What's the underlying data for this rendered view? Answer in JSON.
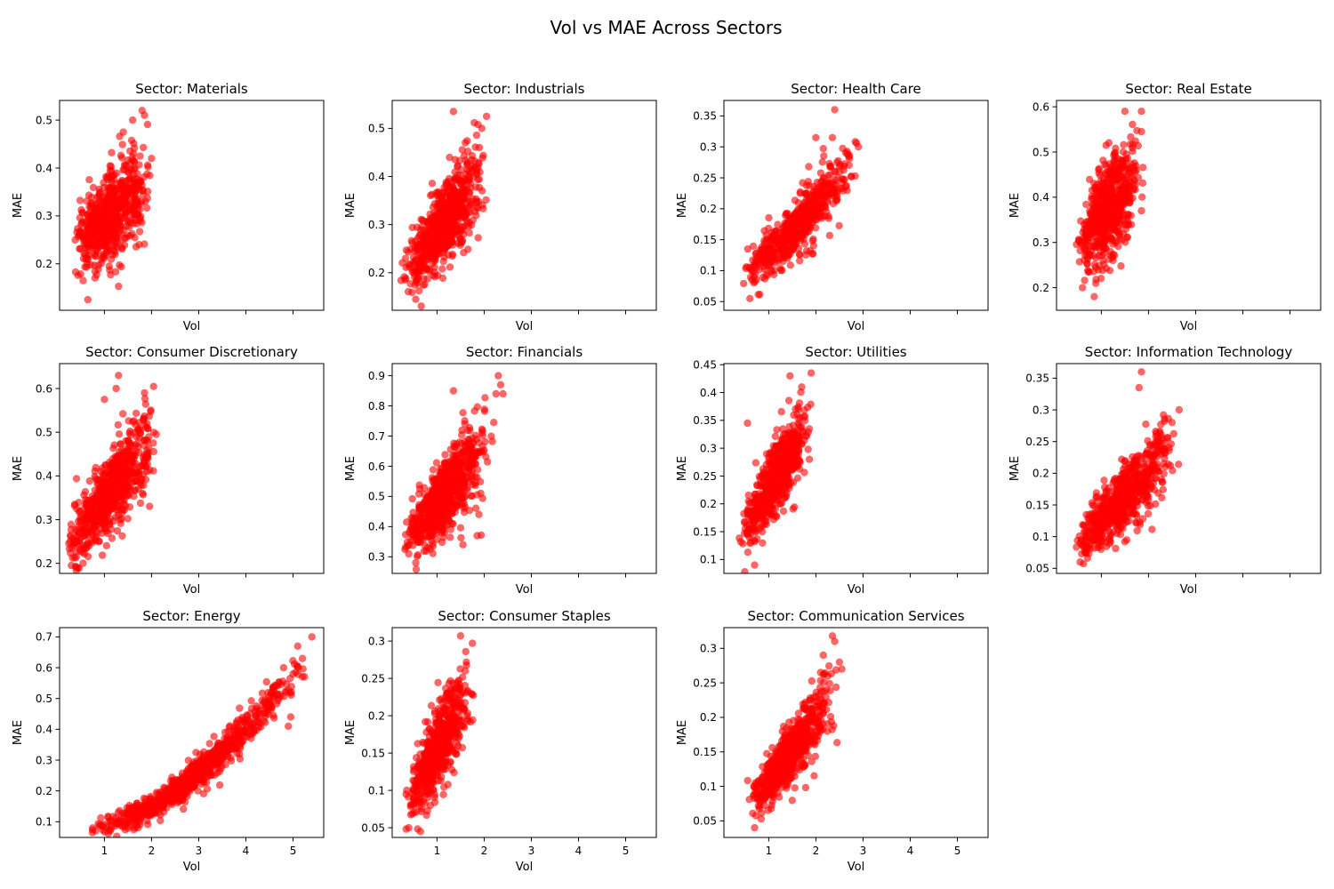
{
  "figure": {
    "title": "Vol vs MAE Across Sectors",
    "grid": "4x3",
    "marker_color": "#ff0000",
    "marker_alpha": 0.6
  },
  "chart_data": [
    {
      "type": "scatter",
      "title": "Sector: Materials",
      "xlabel": "Vol",
      "ylabel": "MAE",
      "xlim": [
        0.05,
        5.65
      ],
      "ylim": [
        0.103,
        0.541
      ],
      "xticks": [
        1,
        2,
        3,
        4,
        5
      ],
      "yticks": [
        0.2,
        0.3,
        0.4,
        0.5
      ],
      "show_xtick_labels": false,
      "cluster": {
        "x_min": 0.4,
        "x_max": 2.0,
        "y_at_x_min": 0.24,
        "y_at_x_max": 0.37,
        "curve": 1,
        "spread": 0.045,
        "n": 650
      },
      "points": [
        {
          "x": 0.65,
          "y": 0.125
        },
        {
          "x": 0.55,
          "y": 0.165
        },
        {
          "x": 1.3,
          "y": 0.153
        },
        {
          "x": 1.8,
          "y": 0.52
        },
        {
          "x": 1.85,
          "y": 0.51
        },
        {
          "x": 1.4,
          "y": 0.475
        },
        {
          "x": 1.6,
          "y": 0.5
        },
        {
          "x": 2.0,
          "y": 0.42
        }
      ]
    },
    {
      "type": "scatter",
      "title": "Sector: Industrials",
      "xlabel": "Vol",
      "ylabel": "MAE",
      "xlim": [
        0.05,
        5.65
      ],
      "ylim": [
        0.122,
        0.558
      ],
      "xticks": [
        1,
        2,
        3,
        4,
        5
      ],
      "yticks": [
        0.2,
        0.3,
        0.4,
        0.5
      ],
      "show_xtick_labels": false,
      "cluster": {
        "x_min": 0.3,
        "x_max": 2.05,
        "y_at_x_min": 0.19,
        "y_at_x_max": 0.42,
        "curve": 1,
        "spread": 0.04,
        "n": 750
      },
      "points": [
        {
          "x": 1.35,
          "y": 0.535
        },
        {
          "x": 2.05,
          "y": 0.525
        },
        {
          "x": 0.55,
          "y": 0.145
        },
        {
          "x": 1.95,
          "y": 0.5
        },
        {
          "x": 1.6,
          "y": 0.47
        },
        {
          "x": 1.9,
          "y": 0.46
        }
      ]
    },
    {
      "type": "scatter",
      "title": "Sector: Health Care",
      "xlabel": "Vol",
      "ylabel": "MAE",
      "xlim": [
        0.05,
        5.65
      ],
      "ylim": [
        0.036,
        0.375
      ],
      "xticks": [
        1,
        2,
        3,
        4,
        5
      ],
      "yticks": [
        0.05,
        0.1,
        0.15,
        0.2,
        0.25,
        0.3,
        0.35
      ],
      "show_xtick_labels": false,
      "cluster": {
        "x_min": 0.5,
        "x_max": 2.9,
        "y_at_x_min": 0.085,
        "y_at_x_max": 0.28,
        "curve": 1,
        "spread": 0.022,
        "n": 600
      },
      "points": [
        {
          "x": 2.4,
          "y": 0.36
        },
        {
          "x": 2.0,
          "y": 0.315
        },
        {
          "x": 2.35,
          "y": 0.315
        },
        {
          "x": 2.9,
          "y": 0.3
        },
        {
          "x": 0.6,
          "y": 0.055
        }
      ]
    },
    {
      "type": "scatter",
      "title": "Sector: Real Estate",
      "xlabel": "Vol",
      "ylabel": "MAE",
      "xlim": [
        0.05,
        5.65
      ],
      "ylim": [
        0.15,
        0.614
      ],
      "xticks": [
        1,
        2,
        3,
        4,
        5
      ],
      "yticks": [
        0.2,
        0.3,
        0.4,
        0.5,
        0.6
      ],
      "show_xtick_labels": false,
      "cluster": {
        "x_min": 0.5,
        "x_max": 1.85,
        "y_at_x_min": 0.29,
        "y_at_x_max": 0.46,
        "curve": 1,
        "spread": 0.05,
        "n": 600
      },
      "points": [
        {
          "x": 1.5,
          "y": 0.59
        },
        {
          "x": 1.85,
          "y": 0.59
        },
        {
          "x": 1.85,
          "y": 0.545
        },
        {
          "x": 1.1,
          "y": 0.515
        },
        {
          "x": 0.6,
          "y": 0.2
        },
        {
          "x": 0.85,
          "y": 0.18
        },
        {
          "x": 1.85,
          "y": 0.37
        }
      ]
    },
    {
      "type": "scatter",
      "title": "Sector: Consumer Discretionary",
      "xlabel": "Vol",
      "ylabel": "MAE",
      "xlim": [
        0.05,
        5.65
      ],
      "ylim": [
        0.177,
        0.657
      ],
      "xticks": [
        1,
        2,
        3,
        4,
        5
      ],
      "yticks": [
        0.2,
        0.3,
        0.4,
        0.5,
        0.6
      ],
      "show_xtick_labels": false,
      "cluster": {
        "x_min": 0.25,
        "x_max": 2.1,
        "y_at_x_min": 0.24,
        "y_at_x_max": 0.5,
        "curve": 1,
        "spread": 0.045,
        "n": 700
      },
      "points": [
        {
          "x": 1.3,
          "y": 0.63
        },
        {
          "x": 1.25,
          "y": 0.6
        },
        {
          "x": 1.85,
          "y": 0.59
        },
        {
          "x": 0.3,
          "y": 0.195
        },
        {
          "x": 1.0,
          "y": 0.575
        },
        {
          "x": 2.1,
          "y": 0.495
        }
      ]
    },
    {
      "type": "scatter",
      "title": "Sector: Financials",
      "xlabel": "Vol",
      "ylabel": "MAE",
      "xlim": [
        0.05,
        5.65
      ],
      "ylim": [
        0.245,
        0.94
      ],
      "xticks": [
        1,
        2,
        3,
        4,
        5
      ],
      "yticks": [
        0.3,
        0.4,
        0.5,
        0.6,
        0.7,
        0.8,
        0.9
      ],
      "show_xtick_labels": false,
      "cluster": {
        "x_min": 0.35,
        "x_max": 2.1,
        "y_at_x_min": 0.35,
        "y_at_x_max": 0.68,
        "curve": 1,
        "spread": 0.06,
        "n": 750
      },
      "points": [
        {
          "x": 2.3,
          "y": 0.9
        },
        {
          "x": 2.35,
          "y": 0.87
        },
        {
          "x": 2.4,
          "y": 0.84
        },
        {
          "x": 2.25,
          "y": 0.84
        },
        {
          "x": 1.35,
          "y": 0.85
        },
        {
          "x": 1.55,
          "y": 0.34
        },
        {
          "x": 0.55,
          "y": 0.28
        },
        {
          "x": 1.85,
          "y": 0.37
        }
      ]
    },
    {
      "type": "scatter",
      "title": "Sector: Utilities",
      "xlabel": "Vol",
      "ylabel": "MAE",
      "xlim": [
        0.05,
        5.65
      ],
      "ylim": [
        0.075,
        0.452
      ],
      "xticks": [
        1,
        2,
        3,
        4,
        5
      ],
      "yticks": [
        0.1,
        0.15,
        0.2,
        0.25,
        0.3,
        0.35,
        0.4,
        0.45
      ],
      "show_xtick_labels": false,
      "cluster": {
        "x_min": 0.45,
        "x_max": 1.9,
        "y_at_x_min": 0.14,
        "y_at_x_max": 0.36,
        "curve": 1,
        "spread": 0.03,
        "n": 650
      },
      "points": [
        {
          "x": 1.9,
          "y": 0.435
        },
        {
          "x": 1.45,
          "y": 0.43
        },
        {
          "x": 1.7,
          "y": 0.41
        },
        {
          "x": 0.7,
          "y": 0.09
        },
        {
          "x": 0.55,
          "y": 0.345
        }
      ]
    },
    {
      "type": "scatter",
      "title": "Sector: Information Technology",
      "xlabel": "Vol",
      "ylabel": "MAE",
      "xlim": [
        0.05,
        5.65
      ],
      "ylim": [
        0.042,
        0.373
      ],
      "xticks": [
        1,
        2,
        3,
        4,
        5
      ],
      "yticks": [
        0.05,
        0.1,
        0.15,
        0.2,
        0.25,
        0.3,
        0.35
      ],
      "show_xtick_labels": false,
      "cluster": {
        "x_min": 0.5,
        "x_max": 2.6,
        "y_at_x_min": 0.085,
        "y_at_x_max": 0.25,
        "curve": 1,
        "spread": 0.025,
        "n": 700
      },
      "points": [
        {
          "x": 1.85,
          "y": 0.36
        },
        {
          "x": 1.8,
          "y": 0.335
        },
        {
          "x": 2.65,
          "y": 0.3
        },
        {
          "x": 2.5,
          "y": 0.28
        },
        {
          "x": 0.55,
          "y": 0.06
        }
      ]
    },
    {
      "type": "scatter",
      "title": "Sector: Energy",
      "xlabel": "Vol",
      "ylabel": "MAE",
      "xlim": [
        0.05,
        5.65
      ],
      "ylim": [
        0.049,
        0.73
      ],
      "xticks": [
        1,
        2,
        3,
        4,
        5
      ],
      "yticks": [
        0.1,
        0.2,
        0.3,
        0.4,
        0.5,
        0.6,
        0.7
      ],
      "show_xtick_labels": true,
      "cluster": {
        "x_min": 0.75,
        "x_max": 5.3,
        "y_at_x_min": 0.08,
        "y_at_x_max": 0.63,
        "curve": 1.6,
        "spread": 0.025,
        "n": 800
      },
      "points": [
        {
          "x": 5.4,
          "y": 0.7
        },
        {
          "x": 5.1,
          "y": 0.67
        },
        {
          "x": 5.2,
          "y": 0.63
        },
        {
          "x": 5.2,
          "y": 0.57
        },
        {
          "x": 4.95,
          "y": 0.44
        },
        {
          "x": 4.9,
          "y": 0.41
        },
        {
          "x": 4.45,
          "y": 0.48
        },
        {
          "x": 4.3,
          "y": 0.42
        },
        {
          "x": 4.8,
          "y": 0.6
        },
        {
          "x": 5.0,
          "y": 0.58
        },
        {
          "x": 0.75,
          "y": 0.08
        }
      ]
    },
    {
      "type": "scatter",
      "title": "Sector: Consumer Staples",
      "xlabel": "Vol",
      "ylabel": "MAE",
      "xlim": [
        0.05,
        5.65
      ],
      "ylim": [
        0.037,
        0.318
      ],
      "xticks": [
        1,
        2,
        3,
        4,
        5
      ],
      "yticks": [
        0.05,
        0.1,
        0.15,
        0.2,
        0.25,
        0.3
      ],
      "show_xtick_labels": true,
      "cluster": {
        "x_min": 0.4,
        "x_max": 1.75,
        "y_at_x_min": 0.085,
        "y_at_x_max": 0.24,
        "curve": 1,
        "spread": 0.025,
        "n": 600
      },
      "points": [
        {
          "x": 1.5,
          "y": 0.307
        },
        {
          "x": 1.75,
          "y": 0.297
        },
        {
          "x": 0.4,
          "y": 0.05
        },
        {
          "x": 0.65,
          "y": 0.045
        },
        {
          "x": 1.6,
          "y": 0.26
        }
      ]
    },
    {
      "type": "scatter",
      "title": "Sector: Communication Services",
      "xlabel": "Vol",
      "ylabel": "MAE",
      "xlim": [
        0.05,
        5.65
      ],
      "ylim": [
        0.026,
        0.33
      ],
      "xticks": [
        1,
        2,
        3,
        4,
        5
      ],
      "yticks": [
        0.05,
        0.1,
        0.15,
        0.2,
        0.25,
        0.3
      ],
      "show_xtick_labels": true,
      "cluster": {
        "x_min": 0.6,
        "x_max": 2.45,
        "y_at_x_min": 0.07,
        "y_at_x_max": 0.24,
        "curve": 1,
        "spread": 0.02,
        "n": 650
      },
      "points": [
        {
          "x": 2.35,
          "y": 0.318
        },
        {
          "x": 2.4,
          "y": 0.31
        },
        {
          "x": 2.5,
          "y": 0.28
        },
        {
          "x": 2.1,
          "y": 0.265
        },
        {
          "x": 0.7,
          "y": 0.04
        },
        {
          "x": 2.55,
          "y": 0.27
        }
      ]
    }
  ]
}
